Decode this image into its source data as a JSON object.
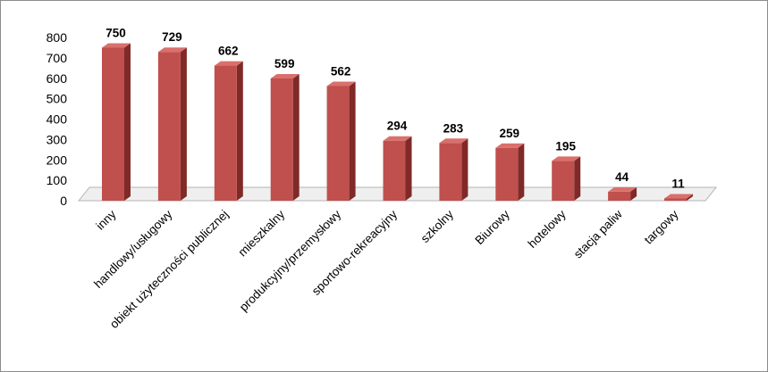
{
  "chart_data": {
    "type": "bar",
    "title": "",
    "xlabel": "",
    "ylabel": "",
    "ylim": [
      0,
      800
    ],
    "yticks": [
      0,
      100,
      200,
      300,
      400,
      500,
      600,
      700,
      800
    ],
    "grid": false,
    "legend": "none",
    "three_d": true,
    "categories": [
      "inny",
      "handlowy/usługowy",
      "obiekt użyteczności publicznej",
      "mieszkalny",
      "produkcyjny/przemysłowy",
      "sportowo-rekreacyjny",
      "szkolny",
      "Biurowy",
      "hotelowy",
      "stacja paliw",
      "targowy"
    ],
    "values": [
      750,
      729,
      662,
      599,
      562,
      294,
      283,
      259,
      195,
      44,
      11
    ],
    "colors": {
      "bar_front": "#c0504d",
      "bar_side": "#7f2a28",
      "bar_top": "#d9706c",
      "floor": "#efefef",
      "floor_edge": "#b3b3b3"
    }
  }
}
